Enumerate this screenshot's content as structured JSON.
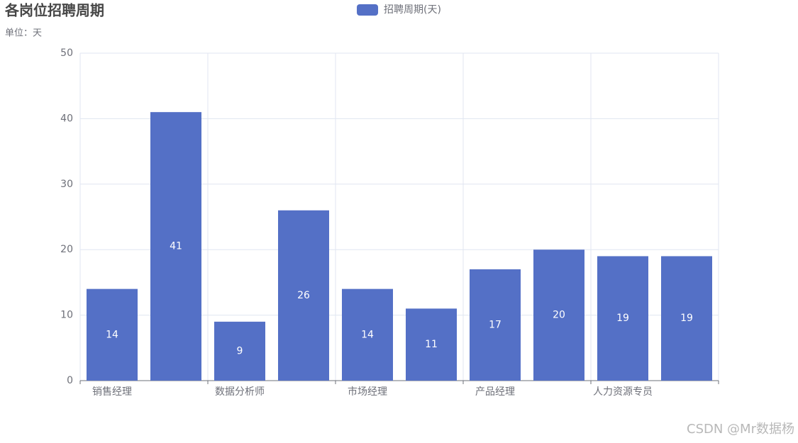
{
  "chart_data": {
    "type": "bar",
    "title": "各岗位招聘周期",
    "subtitle": "单位：天",
    "categories": [
      "销售经理",
      null,
      "数据分析师",
      null,
      "市场经理",
      null,
      "产品经理",
      null,
      "人力资源专员",
      null
    ],
    "series": [
      {
        "name": "招聘周期(天)",
        "color": "#5470c6",
        "values": [
          14,
          41,
          9,
          26,
          14,
          11,
          17,
          20,
          19,
          19
        ]
      }
    ],
    "ylim": [
      0,
      50
    ],
    "yticks": [
      0,
      10,
      20,
      30,
      40,
      50
    ],
    "grid": true,
    "watermark": "CSDN @Mr数据杨"
  }
}
